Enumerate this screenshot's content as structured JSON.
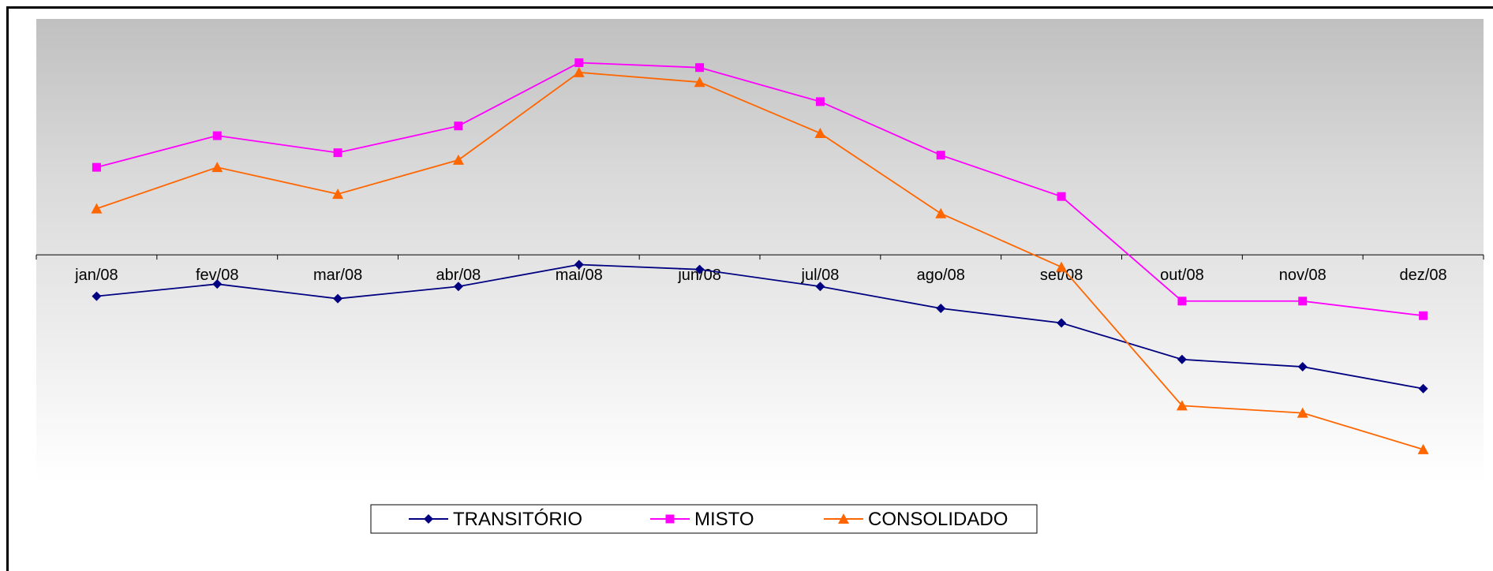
{
  "chart_data": {
    "type": "line",
    "categories": [
      "jan/08",
      "fev/08",
      "mar/08",
      "abr/08",
      "mai/08",
      "jun/08",
      "jul/08",
      "ago/08",
      "set/08",
      "out/08",
      "nov/08",
      "dez/08"
    ],
    "series": [
      {
        "name": "TRANSITÓRIO",
        "color": "#000080",
        "marker": "diamond",
        "values": [
          -1.7,
          -1.2,
          -1.8,
          -1.3,
          -0.4,
          -0.6,
          -1.3,
          -2.2,
          -2.8,
          -4.3,
          -4.6,
          -5.5
        ]
      },
      {
        "name": "MISTO",
        "color": "#FF00FF",
        "marker": "square",
        "values": [
          3.6,
          4.9,
          4.2,
          5.3,
          7.9,
          7.7,
          6.3,
          4.1,
          2.4,
          -1.9,
          -1.9,
          -2.5
        ]
      },
      {
        "name": "CONSOLIDADO",
        "color": "#FF6600",
        "marker": "triangle",
        "values": [
          1.9,
          3.6,
          2.5,
          3.9,
          7.5,
          7.1,
          5.0,
          1.7,
          -0.5,
          -6.2,
          -6.5,
          -8.0
        ]
      }
    ],
    "ylim": [
      -9.3,
      9.7
    ],
    "legend_position": "bottom-center",
    "background": "gradient gray-to-white",
    "grid": false
  }
}
